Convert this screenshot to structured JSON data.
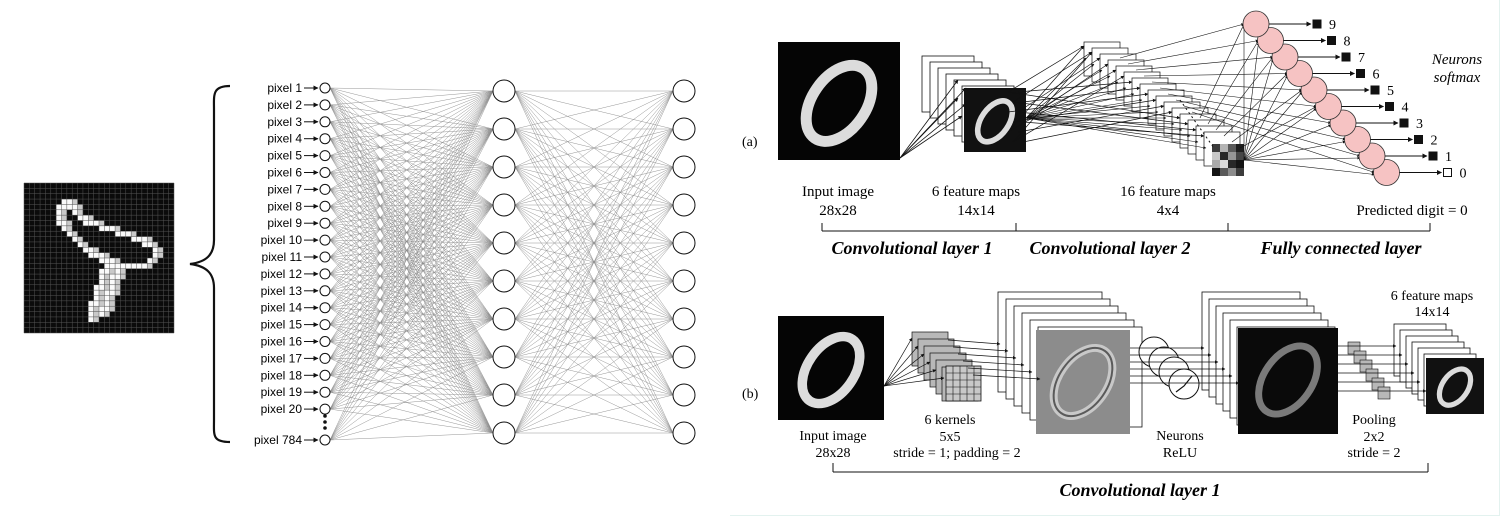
{
  "mlp": {
    "pixel_labels": [
      "pixel 1",
      "pixel 2",
      "pixel 3",
      "pixel 4",
      "pixel 5",
      "pixel 6",
      "pixel 7",
      "pixel 8",
      "pixel 9",
      "pixel 10",
      "pixel 11",
      "pixel 12",
      "pixel 13",
      "pixel 14",
      "pixel 15",
      "pixel 16",
      "pixel 17",
      "pixel 18",
      "pixel 19",
      "pixel 20"
    ],
    "last_pixel_label": "pixel 784"
  },
  "cnn_a": {
    "panel_label": "(a)",
    "labels": {
      "input_title": "Input image",
      "input_size": "28x28",
      "fm1_title": "6 feature maps",
      "fm1_size": "14x14",
      "fm2_title": "16 feature maps",
      "fm2_size": "4x4",
      "predicted": "Predicted digit = 0",
      "neurons_line1": "Neurons",
      "neurons_line2": "softmax"
    },
    "layer_names": [
      "Convolutional layer 1",
      "Convolutional layer 2",
      "Fully connected layer"
    ],
    "output_digits": [
      "9",
      "8",
      "7",
      "6",
      "5",
      "4",
      "3",
      "2",
      "1",
      "0"
    ]
  },
  "cnn_b": {
    "panel_label": "(b)",
    "labels": {
      "input_title": "Input image",
      "input_size": "28x28",
      "kernels_title": "6 kernels",
      "kernels_size": "5x5",
      "kernels_params": "stride = 1; padding = 2",
      "neurons_title": "Neurons",
      "neurons_act": "ReLU",
      "pool_title": "Pooling",
      "pool_size": "2x2",
      "pool_stride": "stride = 2",
      "fm_title": "6 feature maps",
      "fm_size": "14x14"
    },
    "layer_name": "Convolutional layer 1"
  },
  "colors": {
    "neuron_fill": "#f6c3c3",
    "dark": "#111111",
    "line": "#888888"
  }
}
